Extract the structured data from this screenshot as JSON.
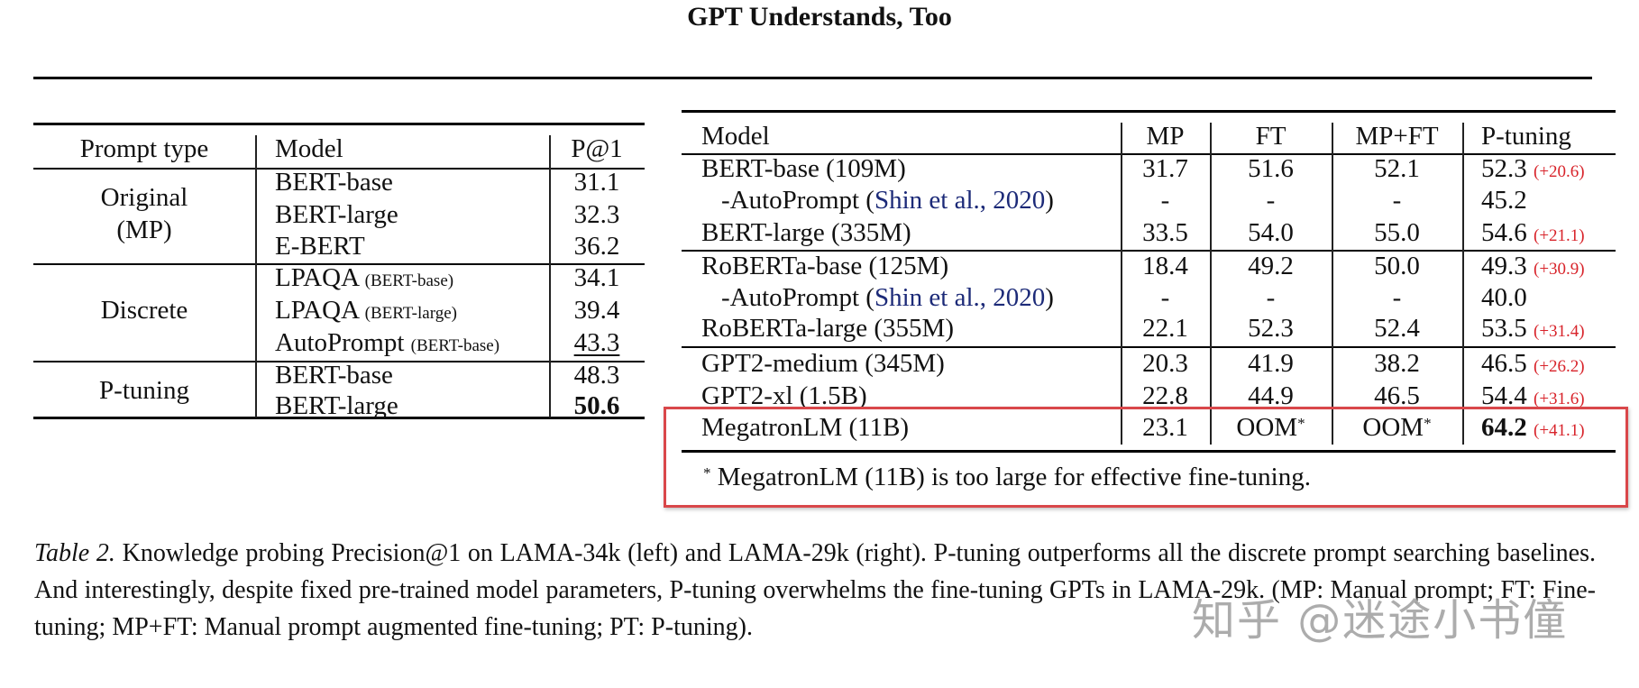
{
  "header": {
    "title": "GPT Understands, Too"
  },
  "left_table": {
    "columns": [
      "Prompt type",
      "Model",
      "P@1"
    ],
    "groups": [
      {
        "label_line1": "Original",
        "label_line2": "(MP)",
        "rows": [
          {
            "model": "BERT-base",
            "sub": "",
            "p1": "31.1"
          },
          {
            "model": "BERT-large",
            "sub": "",
            "p1": "32.3"
          },
          {
            "model": "E-BERT",
            "sub": "",
            "p1": "36.2"
          }
        ]
      },
      {
        "label_line1": "Discrete",
        "label_line2": "",
        "rows": [
          {
            "model": "LPAQA",
            "sub": "(BERT-base)",
            "p1": "34.1"
          },
          {
            "model": "LPAQA",
            "sub": "(BERT-large)",
            "p1": "39.4"
          },
          {
            "model": "AutoPrompt",
            "sub": "(BERT-base)",
            "p1": "43.3",
            "underline": true
          }
        ]
      },
      {
        "label_line1": "P-tuning",
        "label_line2": "",
        "rows": [
          {
            "model": "BERT-base",
            "sub": "",
            "p1": "48.3"
          },
          {
            "model": "BERT-large",
            "sub": "",
            "p1": "50.6",
            "bold": true
          }
        ]
      }
    ]
  },
  "right_table": {
    "columns": [
      "Model",
      "MP",
      "FT",
      "MP+FT",
      "P-tuning"
    ],
    "rows": [
      {
        "model": "BERT-base (109M)",
        "mp": "31.7",
        "ft": "51.6",
        "mpft": "52.1",
        "pt": "52.3",
        "delta": "(+20.6)"
      },
      {
        "model_prefix": "-AutoPrompt (",
        "cite": "Shin et al., 2020",
        "model_suffix": ")",
        "mp": "-",
        "ft": "-",
        "mpft": "-",
        "pt": "45.2",
        "delta": ""
      },
      {
        "model": "BERT-large (335M)",
        "mp": "33.5",
        "ft": "54.0",
        "mpft": "55.0",
        "pt": "54.6",
        "delta": "(+21.1)"
      },
      {
        "model": "RoBERTa-base (125M)",
        "mp": "18.4",
        "ft": "49.2",
        "mpft": "50.0",
        "pt": "49.3",
        "delta": "(+30.9)"
      },
      {
        "model_prefix": "-AutoPrompt (",
        "cite": "Shin et al., 2020",
        "model_suffix": ")",
        "mp": "-",
        "ft": "-",
        "mpft": "-",
        "pt": "40.0",
        "delta": ""
      },
      {
        "model": "RoBERTa-large (355M)",
        "mp": "22.1",
        "ft": "52.3",
        "mpft": "52.4",
        "pt": "53.5",
        "delta": "(+31.4)"
      },
      {
        "model": "GPT2-medium (345M)",
        "mp": "20.3",
        "ft": "41.9",
        "mpft": "38.2",
        "pt": "46.5",
        "delta": "(+26.2)"
      },
      {
        "model": "GPT2-xl (1.5B)",
        "mp": "22.8",
        "ft": "44.9",
        "mpft": "46.5",
        "pt": "54.4",
        "delta": "(+31.6)"
      },
      {
        "model": "MegatronLM (11B)",
        "mp": "23.1",
        "ft": "OOM",
        "ft_mark": "*",
        "mpft": "OOM",
        "mpft_mark": "*",
        "pt": "64.2",
        "delta": "(+41.1)",
        "pt_bold": true
      }
    ],
    "footnote_mark": "*",
    "footnote": "MegatronLM (11B) is too large for effective fine-tuning."
  },
  "caption": {
    "label": "Table 2.",
    "text": " Knowledge probing Precision@1 on LAMA-34k (left) and LAMA-29k (right). P-tuning outperforms all the discrete prompt searching baselines.  And interestingly, despite fixed pre-trained model parameters, P-tuning overwhelms the fine-tuning GPTs in LAMA-29k. (MP: Manual prompt; FT: Fine-tuning; MP+FT: Manual prompt augmented fine-tuning; PT: P-tuning)."
  },
  "watermark": "知乎 @迷途小书僮",
  "colors": {
    "delta": "#d8232a",
    "citation": "#1c2a78",
    "highlight_box": "#d9474a"
  }
}
